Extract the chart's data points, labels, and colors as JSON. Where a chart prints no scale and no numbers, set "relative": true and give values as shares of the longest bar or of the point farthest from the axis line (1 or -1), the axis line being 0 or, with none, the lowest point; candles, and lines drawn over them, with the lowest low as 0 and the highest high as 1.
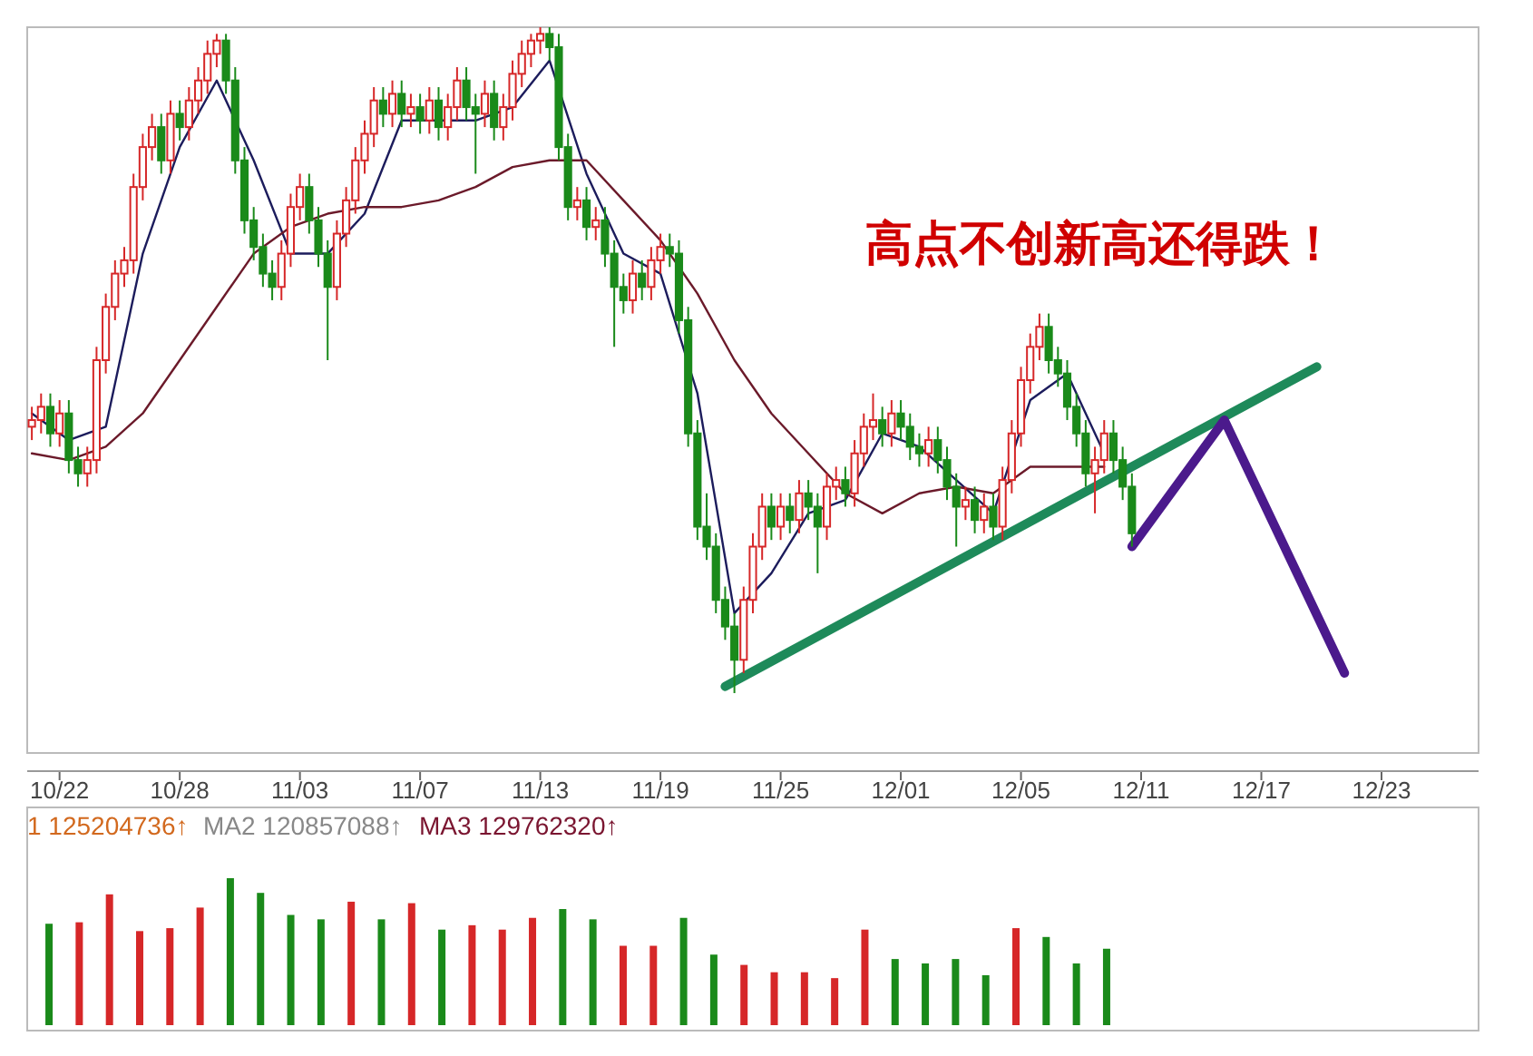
{
  "chart_data": [
    {
      "type": "candlestick",
      "relative": true,
      "tick_labels": "x",
      "categories": [
        null,
        null,
        null,
        "10/22",
        null,
        null,
        null,
        null,
        null,
        null,
        null,
        null,
        null,
        null,
        null,
        null,
        "10/28",
        null,
        null,
        null,
        null,
        null,
        null,
        null,
        null,
        null,
        null,
        null,
        null,
        "11/03",
        null,
        null,
        null,
        null,
        null,
        null,
        null,
        null,
        null,
        null,
        null,
        null,
        "11/07",
        null,
        null,
        null,
        null,
        null,
        null,
        null,
        null,
        null,
        null,
        null,
        null,
        "11/13",
        null,
        null,
        null,
        null,
        null,
        null,
        null,
        null,
        null,
        null,
        null,
        null,
        "11/19",
        null,
        null,
        null,
        null,
        null,
        null,
        null,
        null,
        null,
        null,
        null,
        null,
        "11/25",
        null,
        null,
        null,
        null,
        null,
        null,
        null,
        null,
        null,
        null,
        null,
        null,
        "12/01",
        null,
        null,
        null,
        null,
        null,
        null,
        null,
        null,
        null,
        null,
        null,
        null,
        "12/05",
        null,
        null,
        null,
        null,
        null,
        null,
        null,
        null,
        null,
        null,
        null,
        null,
        "12/11",
        null,
        null,
        null,
        null,
        null,
        null,
        null,
        null,
        null,
        null,
        null,
        null,
        "12/17",
        null,
        null,
        null,
        null,
        null,
        null,
        null,
        null,
        null,
        null,
        null,
        null,
        "12/23",
        null,
        null,
        null,
        null,
        null,
        null,
        null,
        null,
        null,
        null
      ],
      "ohlc": [
        [
          0.4,
          0.43,
          0.38,
          0.41
        ],
        [
          0.41,
          0.45,
          0.39,
          0.43
        ],
        [
          0.43,
          0.45,
          0.37,
          0.39
        ],
        [
          0.39,
          0.44,
          0.37,
          0.42
        ],
        [
          0.42,
          0.44,
          0.33,
          0.35
        ],
        [
          0.35,
          0.37,
          0.31,
          0.33
        ],
        [
          0.33,
          0.37,
          0.31,
          0.35
        ],
        [
          0.35,
          0.52,
          0.33,
          0.5
        ],
        [
          0.5,
          0.6,
          0.48,
          0.58
        ],
        [
          0.58,
          0.65,
          0.56,
          0.63
        ],
        [
          0.63,
          0.67,
          0.61,
          0.65
        ],
        [
          0.65,
          0.78,
          0.63,
          0.76
        ],
        [
          0.76,
          0.84,
          0.74,
          0.82
        ],
        [
          0.82,
          0.87,
          0.8,
          0.85
        ],
        [
          0.85,
          0.87,
          0.78,
          0.8
        ],
        [
          0.8,
          0.89,
          0.78,
          0.87
        ],
        [
          0.87,
          0.89,
          0.83,
          0.85
        ],
        [
          0.85,
          0.91,
          0.83,
          0.89
        ],
        [
          0.89,
          0.94,
          0.87,
          0.92
        ],
        [
          0.92,
          0.98,
          0.9,
          0.96
        ],
        [
          0.96,
          0.99,
          0.94,
          0.98
        ],
        [
          0.98,
          0.99,
          0.9,
          0.92
        ],
        [
          0.92,
          0.94,
          0.78,
          0.8
        ],
        [
          0.8,
          0.82,
          0.69,
          0.71
        ],
        [
          0.71,
          0.73,
          0.65,
          0.67
        ],
        [
          0.67,
          0.69,
          0.61,
          0.63
        ],
        [
          0.63,
          0.65,
          0.59,
          0.61
        ],
        [
          0.61,
          0.68,
          0.59,
          0.66
        ],
        [
          0.66,
          0.75,
          0.64,
          0.73
        ],
        [
          0.73,
          0.78,
          0.71,
          0.76
        ],
        [
          0.76,
          0.78,
          0.69,
          0.71
        ],
        [
          0.71,
          0.73,
          0.64,
          0.66
        ],
        [
          0.66,
          0.68,
          0.5,
          0.61
        ],
        [
          0.61,
          0.71,
          0.59,
          0.69
        ],
        [
          0.69,
          0.76,
          0.67,
          0.74
        ],
        [
          0.74,
          0.82,
          0.72,
          0.8
        ],
        [
          0.8,
          0.86,
          0.78,
          0.84
        ],
        [
          0.84,
          0.91,
          0.82,
          0.89
        ],
        [
          0.89,
          0.91,
          0.85,
          0.87
        ],
        [
          0.87,
          0.92,
          0.85,
          0.9
        ],
        [
          0.9,
          0.92,
          0.85,
          0.87
        ],
        [
          0.87,
          0.9,
          0.85,
          0.88
        ],
        [
          0.88,
          0.9,
          0.84,
          0.86
        ],
        [
          0.86,
          0.91,
          0.84,
          0.89
        ],
        [
          0.89,
          0.91,
          0.83,
          0.85
        ],
        [
          0.85,
          0.9,
          0.83,
          0.88
        ],
        [
          0.88,
          0.94,
          0.86,
          0.92
        ],
        [
          0.92,
          0.94,
          0.86,
          0.88
        ],
        [
          0.88,
          0.9,
          0.78,
          0.87
        ],
        [
          0.87,
          0.92,
          0.85,
          0.9
        ],
        [
          0.9,
          0.92,
          0.83,
          0.85
        ],
        [
          0.85,
          0.9,
          0.83,
          0.88
        ],
        [
          0.88,
          0.95,
          0.86,
          0.93
        ],
        [
          0.93,
          0.98,
          0.91,
          0.96
        ],
        [
          0.96,
          0.99,
          0.94,
          0.98
        ],
        [
          0.98,
          1.0,
          0.96,
          0.99
        ],
        [
          0.99,
          1.0,
          0.95,
          0.97
        ],
        [
          0.97,
          0.99,
          0.8,
          0.82
        ],
        [
          0.82,
          0.84,
          0.71,
          0.73
        ],
        [
          0.73,
          0.76,
          0.71,
          0.74
        ],
        [
          0.74,
          0.76,
          0.68,
          0.7
        ],
        [
          0.7,
          0.73,
          0.68,
          0.71
        ],
        [
          0.71,
          0.73,
          0.64,
          0.66
        ],
        [
          0.66,
          0.68,
          0.52,
          0.61
        ],
        [
          0.61,
          0.63,
          0.57,
          0.59
        ],
        [
          0.59,
          0.65,
          0.57,
          0.63
        ],
        [
          0.63,
          0.65,
          0.59,
          0.61
        ],
        [
          0.61,
          0.67,
          0.59,
          0.65
        ],
        [
          0.65,
          0.69,
          0.63,
          0.67
        ],
        [
          0.67,
          0.69,
          0.64,
          0.66
        ],
        [
          0.66,
          0.68,
          0.54,
          0.56
        ],
        [
          0.56,
          0.58,
          0.37,
          0.39
        ],
        [
          0.39,
          0.41,
          0.23,
          0.25
        ],
        [
          0.25,
          0.3,
          0.2,
          0.22
        ],
        [
          0.22,
          0.24,
          0.12,
          0.14
        ],
        [
          0.14,
          0.16,
          0.08,
          0.1
        ],
        [
          0.1,
          0.12,
          0.0,
          0.05
        ],
        [
          0.05,
          0.16,
          0.03,
          0.14
        ],
        [
          0.14,
          0.24,
          0.12,
          0.22
        ],
        [
          0.22,
          0.3,
          0.2,
          0.28
        ],
        [
          0.28,
          0.3,
          0.23,
          0.25
        ],
        [
          0.25,
          0.3,
          0.23,
          0.28
        ],
        [
          0.28,
          0.3,
          0.24,
          0.26
        ],
        [
          0.26,
          0.32,
          0.24,
          0.3
        ],
        [
          0.3,
          0.32,
          0.26,
          0.28
        ],
        [
          0.28,
          0.3,
          0.18,
          0.25
        ],
        [
          0.25,
          0.33,
          0.23,
          0.31
        ],
        [
          0.31,
          0.34,
          0.29,
          0.32
        ],
        [
          0.32,
          0.34,
          0.28,
          0.3
        ],
        [
          0.3,
          0.38,
          0.28,
          0.36
        ],
        [
          0.36,
          0.42,
          0.34,
          0.4
        ],
        [
          0.4,
          0.45,
          0.38,
          0.41
        ],
        [
          0.41,
          0.43,
          0.37,
          0.39
        ],
        [
          0.39,
          0.44,
          0.37,
          0.42
        ],
        [
          0.42,
          0.44,
          0.38,
          0.4
        ],
        [
          0.4,
          0.42,
          0.35,
          0.37
        ],
        [
          0.37,
          0.39,
          0.34,
          0.36
        ],
        [
          0.36,
          0.4,
          0.34,
          0.38
        ],
        [
          0.38,
          0.4,
          0.33,
          0.35
        ],
        [
          0.35,
          0.37,
          0.29,
          0.31
        ],
        [
          0.31,
          0.33,
          0.22,
          0.28
        ],
        [
          0.28,
          0.31,
          0.26,
          0.29
        ],
        [
          0.29,
          0.31,
          0.24,
          0.26
        ],
        [
          0.26,
          0.3,
          0.24,
          0.28
        ],
        [
          0.28,
          0.3,
          0.23,
          0.25
        ],
        [
          0.25,
          0.34,
          0.23,
          0.32
        ],
        [
          0.32,
          0.41,
          0.3,
          0.39
        ],
        [
          0.39,
          0.49,
          0.37,
          0.47
        ],
        [
          0.47,
          0.54,
          0.45,
          0.52
        ],
        [
          0.52,
          0.57,
          0.5,
          0.55
        ],
        [
          0.55,
          0.57,
          0.48,
          0.5
        ],
        [
          0.5,
          0.52,
          0.46,
          0.48
        ],
        [
          0.48,
          0.5,
          0.41,
          0.43
        ],
        [
          0.43,
          0.45,
          0.37,
          0.39
        ],
        [
          0.39,
          0.41,
          0.31,
          0.33
        ],
        [
          0.33,
          0.37,
          0.27,
          0.35
        ],
        [
          0.35,
          0.41,
          0.33,
          0.39
        ],
        [
          0.39,
          0.41,
          0.33,
          0.35
        ],
        [
          0.35,
          0.37,
          0.29,
          0.31
        ],
        [
          0.31,
          0.33,
          0.22,
          0.24
        ],
        null,
        null,
        null,
        null,
        null,
        null,
        null,
        null,
        null,
        null,
        null,
        null,
        null,
        null,
        null,
        null,
        null,
        null,
        null,
        null,
        null,
        null,
        null,
        null,
        null,
        null,
        null,
        null,
        null,
        null,
        null,
        null,
        null,
        null,
        null,
        null,
        null
      ],
      "series": [
        {
          "type": "line",
          "color": "#1c1c5c",
          "values": [
            0.42,
            null,
            null,
            null,
            0.38,
            null,
            null,
            null,
            0.4,
            null,
            null,
            null,
            0.66,
            null,
            null,
            null,
            0.82,
            null,
            null,
            null,
            0.92,
            null,
            null,
            null,
            0.8,
            null,
            null,
            null,
            0.66,
            null,
            null,
            null,
            0.66,
            null,
            null,
            null,
            0.72,
            null,
            null,
            null,
            0.86,
            null,
            null,
            null,
            0.86,
            null,
            null,
            null,
            0.86,
            null,
            null,
            null,
            0.88,
            null,
            null,
            null,
            0.95,
            null,
            null,
            null,
            0.78,
            null,
            null,
            null,
            0.66,
            null,
            null,
            null,
            0.63,
            null,
            null,
            null,
            0.45,
            null,
            null,
            null,
            0.12,
            null,
            null,
            null,
            0.18,
            null,
            null,
            null,
            0.27,
            null,
            null,
            null,
            0.29,
            null,
            null,
            null,
            0.39,
            null,
            null,
            null,
            0.37,
            null,
            null,
            null,
            0.32,
            null,
            null,
            null,
            0.27,
            null,
            null,
            null,
            0.44,
            null,
            null,
            null,
            0.48,
            null,
            null,
            null,
            0.36,
            null,
            null,
            null,
            null,
            null,
            null,
            null,
            null,
            null,
            null,
            null,
            null,
            null,
            null,
            null,
            null,
            null,
            null,
            null,
            null,
            null,
            null,
            null,
            null,
            null,
            null,
            null,
            null,
            null,
            null,
            null,
            null,
            null,
            null,
            null,
            null,
            null,
            null,
            null,
            null
          ]
        },
        {
          "type": "line",
          "color": "#6b1a2a",
          "values": [
            0.36,
            null,
            null,
            null,
            0.35,
            null,
            null,
            null,
            0.37,
            null,
            null,
            null,
            0.42,
            null,
            null,
            null,
            0.5,
            null,
            null,
            null,
            0.58,
            null,
            null,
            null,
            0.66,
            null,
            null,
            null,
            0.7,
            null,
            null,
            null,
            0.72,
            null,
            null,
            null,
            0.73,
            null,
            null,
            null,
            0.73,
            null,
            null,
            null,
            0.74,
            null,
            null,
            null,
            0.76,
            null,
            null,
            null,
            0.79,
            null,
            null,
            null,
            0.8,
            null,
            null,
            null,
            0.8,
            null,
            null,
            null,
            0.74,
            null,
            null,
            null,
            0.68,
            null,
            null,
            null,
            0.6,
            null,
            null,
            null,
            0.5,
            null,
            null,
            null,
            0.42,
            null,
            null,
            null,
            0.36,
            null,
            null,
            null,
            0.3,
            null,
            null,
            null,
            0.27,
            null,
            null,
            null,
            0.3,
            null,
            null,
            null,
            0.31,
            null,
            null,
            null,
            0.3,
            null,
            null,
            null,
            0.34,
            null,
            null,
            null,
            0.34,
            null,
            null,
            null,
            0.34,
            null,
            null,
            null,
            null,
            null,
            null,
            null,
            null,
            null,
            null,
            null,
            null,
            null,
            null,
            null,
            null,
            null,
            null,
            null,
            null,
            null,
            null,
            null,
            null,
            null,
            null,
            null,
            null,
            null,
            null,
            null,
            null,
            null,
            null,
            null,
            null,
            null,
            null,
            null,
            null
          ]
        },
        {
          "type": "line",
          "color": "#1e8a5a",
          "values": [
            null,
            null,
            null,
            null,
            null,
            null,
            null,
            null,
            null,
            null,
            null,
            null,
            null,
            null,
            null,
            null,
            null,
            null,
            null,
            null,
            null,
            null,
            null,
            null,
            null,
            null,
            null,
            null,
            null,
            null,
            null,
            null,
            null,
            null,
            null,
            null,
            null,
            null,
            null,
            null,
            null,
            null,
            null,
            null,
            null,
            null,
            null,
            null,
            null,
            null,
            null,
            null,
            null,
            null,
            null,
            null,
            null,
            null,
            null,
            null,
            null,
            null,
            null,
            null,
            null,
            null,
            null,
            null,
            null,
            null,
            null,
            null,
            null,
            null,
            null,
            0.01,
            null,
            null,
            null,
            null,
            null,
            null,
            null,
            null,
            null,
            null,
            null,
            null,
            null,
            null,
            null,
            null,
            null,
            null,
            null,
            null,
            null,
            null,
            null,
            null,
            null,
            null,
            null,
            null,
            null,
            null,
            null,
            null,
            null,
            null,
            null,
            null,
            null,
            null,
            null,
            null,
            null,
            null,
            null,
            null,
            null,
            null,
            null,
            null,
            null,
            null,
            null,
            null,
            null,
            null,
            null,
            null,
            null,
            null,
            null,
            null,
            null,
            null,
            null,
            0.49,
            null,
            null,
            null,
            null,
            null,
            null,
            null,
            null,
            null,
            null,
            null,
            null,
            null,
            null,
            null,
            null,
            null
          ]
        },
        {
          "type": "line",
          "color": "#4b1a8c",
          "values": [
            null,
            null,
            null,
            null,
            null,
            null,
            null,
            null,
            null,
            null,
            null,
            null,
            null,
            null,
            null,
            null,
            null,
            null,
            null,
            null,
            null,
            null,
            null,
            null,
            null,
            null,
            null,
            null,
            null,
            null,
            null,
            null,
            null,
            null,
            null,
            null,
            null,
            null,
            null,
            null,
            null,
            null,
            null,
            null,
            null,
            null,
            null,
            null,
            null,
            null,
            null,
            null,
            null,
            null,
            null,
            null,
            null,
            null,
            null,
            null,
            null,
            null,
            null,
            null,
            null,
            null,
            null,
            null,
            null,
            null,
            null,
            null,
            null,
            null,
            null,
            null,
            null,
            null,
            null,
            null,
            null,
            null,
            null,
            null,
            null,
            null,
            null,
            null,
            null,
            null,
            null,
            null,
            null,
            null,
            null,
            null,
            null,
            null,
            null,
            null,
            null,
            null,
            null,
            null,
            null,
            null,
            null,
            null,
            null,
            null,
            null,
            null,
            null,
            null,
            null,
            null,
            null,
            null,
            null,
            0.22,
            null,
            null,
            null,
            null,
            null,
            null,
            null,
            null,
            null,
            0.41,
            null,
            null,
            null,
            null,
            null,
            null,
            null,
            null,
            null,
            null,
            null,
            null,
            0.03,
            null,
            null,
            null,
            null,
            null,
            null,
            null,
            null,
            null,
            null,
            null,
            null,
            null,
            null
          ]
        }
      ],
      "annotations": [
        "高点不创新高还得跌！"
      ]
    },
    {
      "type": "bar",
      "relative": true,
      "tick_labels": false,
      "categories": [
        null,
        null,
        null,
        null,
        null,
        null,
        null,
        null,
        null,
        null,
        null,
        null,
        null,
        null,
        null,
        null,
        null,
        null,
        null,
        null,
        null,
        null,
        null,
        null,
        null,
        null,
        null,
        null,
        null,
        null,
        null,
        null,
        null,
        null,
        null,
        null
      ],
      "values": [
        0.69,
        0.7,
        0.89,
        0.64,
        0.66,
        0.8,
        1,
        0.9,
        0.75,
        0.72,
        0.84,
        0.72,
        0.83,
        0.65,
        0.68,
        0.65,
        0.73,
        0.79,
        0.72,
        0.54,
        0.54,
        0.73,
        0.48,
        0.41,
        0.36,
        0.36,
        0.32,
        0.65,
        0.45,
        0.42,
        0.45,
        0.34,
        0.66,
        0.6,
        0.42,
        0.52
      ],
      "colors": [
        "#1a8a1a",
        "#d62728",
        "#d62728",
        "#d62728",
        "#d62728",
        "#d62728",
        "#1a8a1a",
        "#1a8a1a",
        "#1a8a1a",
        "#1a8a1a",
        "#d62728",
        "#1a8a1a",
        "#d62728",
        "#1a8a1a",
        "#d62728",
        "#d62728",
        "#d62728",
        "#1a8a1a",
        "#1a8a1a",
        "#d62728",
        "#d62728",
        "#1a8a1a",
        "#1a8a1a",
        "#d62728",
        "#d62728",
        "#d62728",
        "#d62728",
        "#d62728",
        "#1a8a1a",
        "#1a8a1a",
        "#1a8a1a",
        "#1a8a1a",
        "#d62728",
        "#1a8a1a",
        "#1a8a1a",
        "#1a8a1a"
      ],
      "annotations": [
        "1 125204736↑",
        "MA2 120857088↑",
        "MA3 129762320↑"
      ]
    }
  ]
}
